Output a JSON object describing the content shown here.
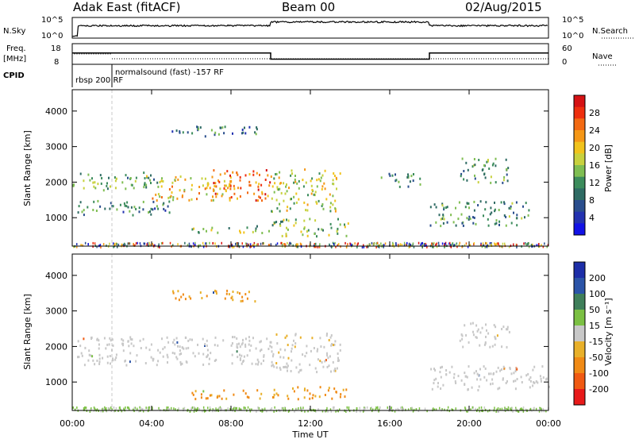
{
  "header": {
    "station": "Adak East (fitACF)",
    "beam": "Beam 00",
    "date": "02/Aug/2015"
  },
  "top_panels": {
    "nsky_label": "N.Sky",
    "nsky_ticks": [
      "10^5",
      "10^0"
    ],
    "nsearch_label": "N.Search",
    "nsearch_ticks": [
      "10^5",
      "10^0"
    ],
    "freq_label": "Freq.",
    "freq_unit": "[MHz]",
    "freq_ticks": [
      "18",
      "8"
    ],
    "nave_label": "Nave",
    "nave_ticks": [
      "60",
      "0"
    ],
    "cpid_label": "CPID",
    "cpid_segments": [
      {
        "text": "rbsp 200 RF",
        "start_hour": 0
      },
      {
        "text": "normalsound (fast) -157 RF",
        "start_hour": 2
      }
    ]
  },
  "chart_data": [
    {
      "type": "heatmap",
      "name": "power",
      "ylabel": "Slant Range [km]",
      "yticks": [
        "4000",
        "3000",
        "2000",
        "1000"
      ],
      "ylim": [
        200,
        4600
      ],
      "xlim": [
        0,
        24
      ],
      "colorbar": {
        "label": "Power [dB]",
        "ticks": [
          "28",
          "24",
          "20",
          "16",
          "12",
          "8",
          "4"
        ],
        "colors": [
          "#d51214",
          "#ee2f0e",
          "#f36a13",
          "#f59716",
          "#f1c31c",
          "#c8d13e",
          "#7fbe52",
          "#3c8c5c",
          "#2f6b64",
          "#2a4e8d",
          "#2332b0",
          "#1212e6"
        ]
      },
      "regions": [
        {
          "x0": 0.0,
          "x1": 4.5,
          "y0": 1800,
          "y1": 2300,
          "power": 13
        },
        {
          "x0": 4.0,
          "x1": 8.0,
          "y0": 1500,
          "y1": 2200,
          "power": 20
        },
        {
          "x0": 7.0,
          "x1": 10.0,
          "y0": 1500,
          "y1": 2400,
          "power": 26
        },
        {
          "x0": 10.0,
          "x1": 13.5,
          "y0": 1200,
          "y1": 2400,
          "power": 17
        },
        {
          "x0": 0.0,
          "x1": 5.0,
          "y0": 1100,
          "y1": 1500,
          "power": 10
        },
        {
          "x0": 5.0,
          "x1": 9.5,
          "y0": 3300,
          "y1": 3600,
          "power": 9
        },
        {
          "x0": 6.0,
          "x1": 10.0,
          "y0": 600,
          "y1": 800,
          "power": 14
        },
        {
          "x0": 10.0,
          "x1": 14.0,
          "y0": 500,
          "y1": 1000,
          "power": 15
        },
        {
          "x0": 15.5,
          "x1": 17.5,
          "y0": 1900,
          "y1": 2300,
          "power": 10
        },
        {
          "x0": 18.0,
          "x1": 23.0,
          "y0": 800,
          "y1": 1500,
          "power": 11
        },
        {
          "x0": 19.5,
          "x1": 22.0,
          "y0": 2000,
          "y1": 2700,
          "power": 12
        }
      ]
    },
    {
      "type": "heatmap",
      "name": "velocity",
      "ylabel": "Slant Range [km]",
      "yticks": [
        "4000",
        "3000",
        "2000",
        "1000"
      ],
      "ylim": [
        200,
        4600
      ],
      "xlim": [
        0,
        24
      ],
      "xticks": [
        "00:00",
        "04:00",
        "08:00",
        "12:00",
        "16:00",
        "20:00",
        "00:00"
      ],
      "xlabel": "Time UT",
      "colorbar": {
        "label": "Velocity [m s⁻¹]",
        "ticks": [
          "200",
          "100",
          "50",
          "15",
          "-15",
          "-50",
          "-100",
          "-200"
        ],
        "colors": [
          "#1d2ea8",
          "#2b54a8",
          "#3f7f5a",
          "#7bc043",
          "#c8c8c8",
          "#e8b02a",
          "#f08a15",
          "#f05a12",
          "#e81a1a"
        ]
      },
      "regions": [
        {
          "x0": 0.0,
          "x1": 10.0,
          "y0": 1500,
          "y1": 2300,
          "velocity": 0
        },
        {
          "x0": 10.0,
          "x1": 13.5,
          "y0": 1300,
          "y1": 2400,
          "velocity": -5
        },
        {
          "x0": 6.0,
          "x1": 10.0,
          "y0": 550,
          "y1": 800,
          "velocity": -40
        },
        {
          "x0": 10.0,
          "x1": 14.0,
          "y0": 550,
          "y1": 900,
          "velocity": -35
        },
        {
          "x0": 18.0,
          "x1": 24.0,
          "y0": 800,
          "y1": 1500,
          "velocity": 0
        },
        {
          "x0": 19.5,
          "x1": 22.0,
          "y0": 2000,
          "y1": 2700,
          "velocity": 0
        },
        {
          "x0": 5.0,
          "x1": 9.5,
          "y0": 3300,
          "y1": 3600,
          "velocity": -30
        }
      ]
    }
  ]
}
